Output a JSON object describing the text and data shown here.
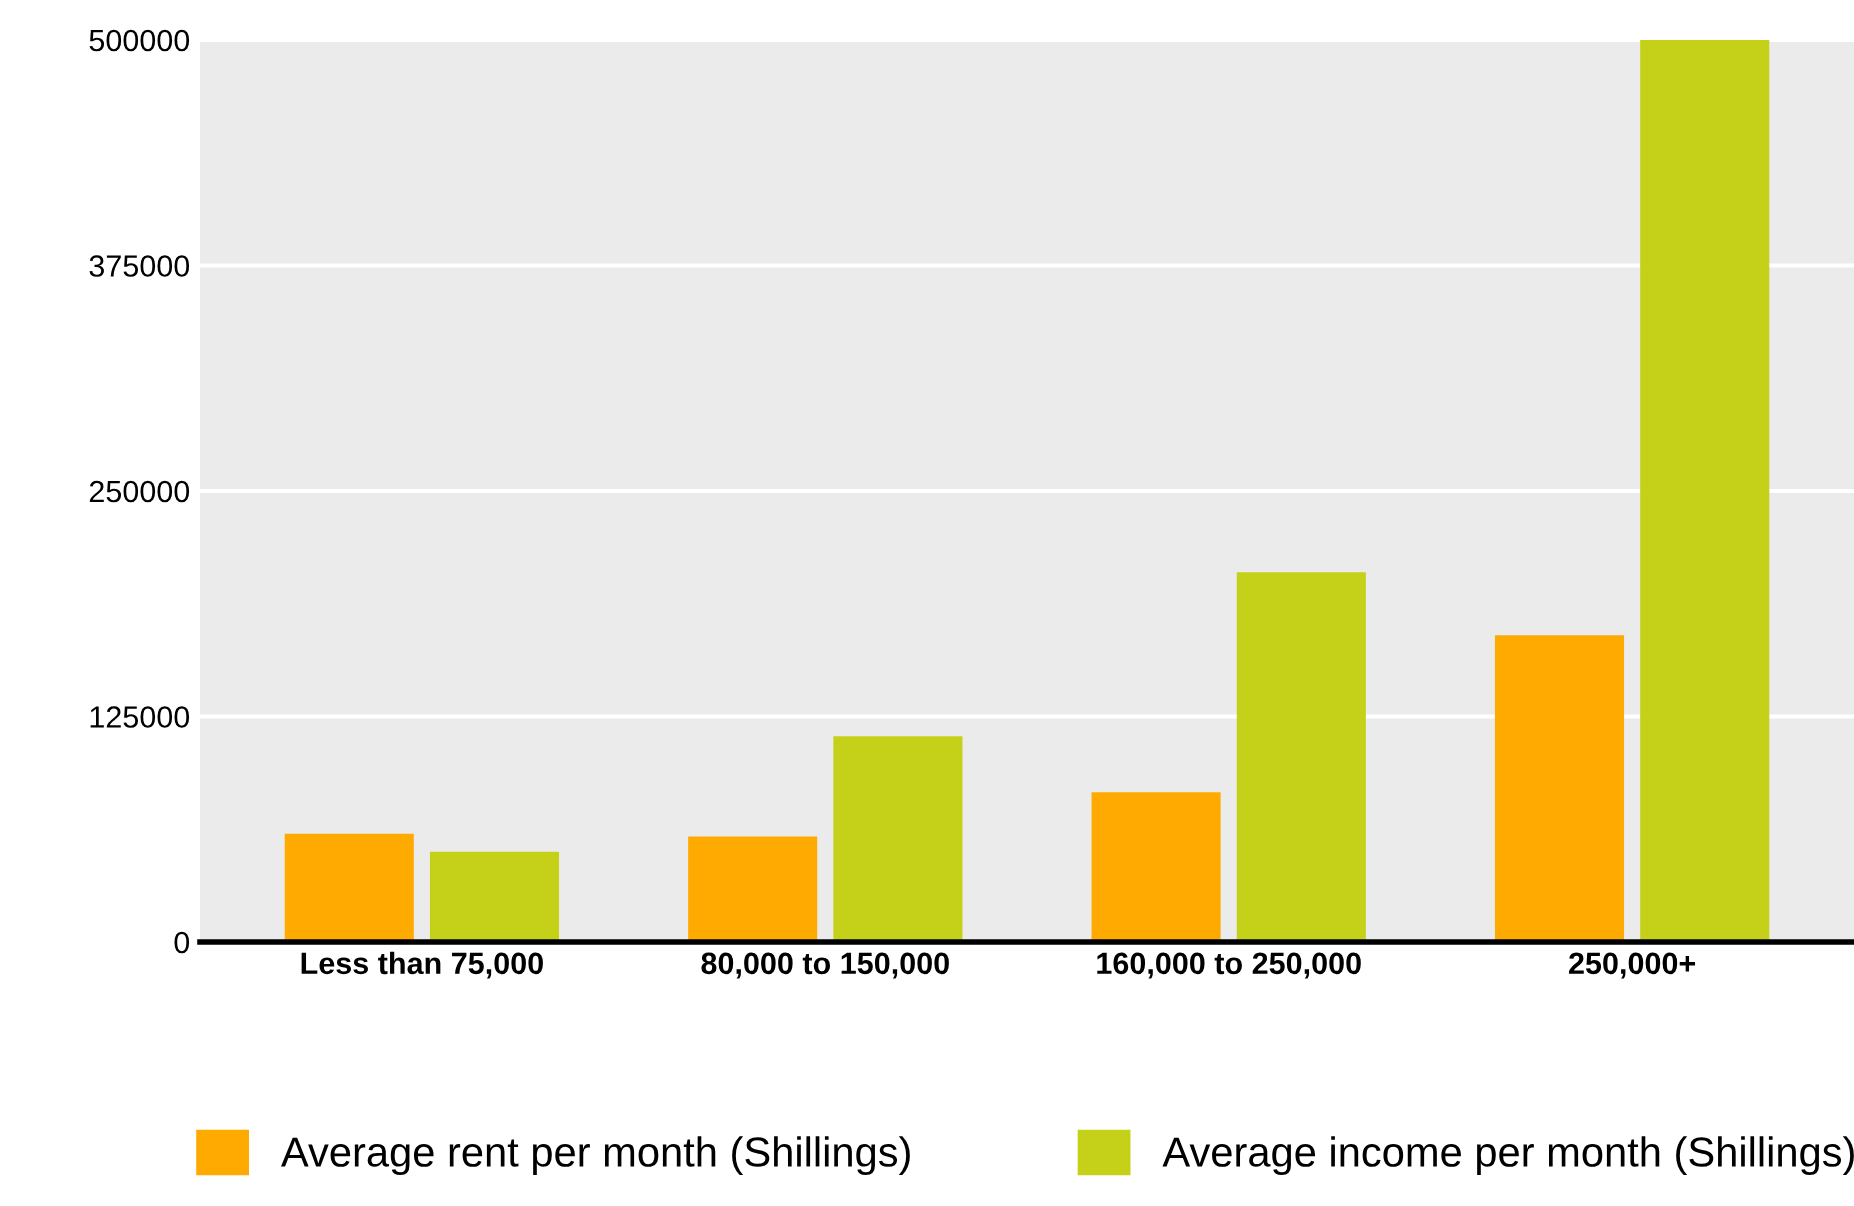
{
  "chart_data": {
    "type": "bar",
    "categories": [
      "Less than 75,000",
      "80,000 to 150,000",
      "160,000 to 250,000",
      "250,000+"
    ],
    "series": [
      {
        "name": "Average rent per month (Shillings)",
        "color": "#ffaa00",
        "values": [
          60000,
          58500,
          83000,
          170000
        ]
      },
      {
        "name": "Average income per month (Shillings)",
        "color": "#c4d118",
        "values": [
          50000,
          114000,
          205000,
          500000
        ]
      }
    ],
    "ylim": [
      0,
      500000
    ],
    "yticks": [
      0,
      125000,
      250000,
      375000,
      500000
    ],
    "grid": "y",
    "legend": "bottom"
  }
}
